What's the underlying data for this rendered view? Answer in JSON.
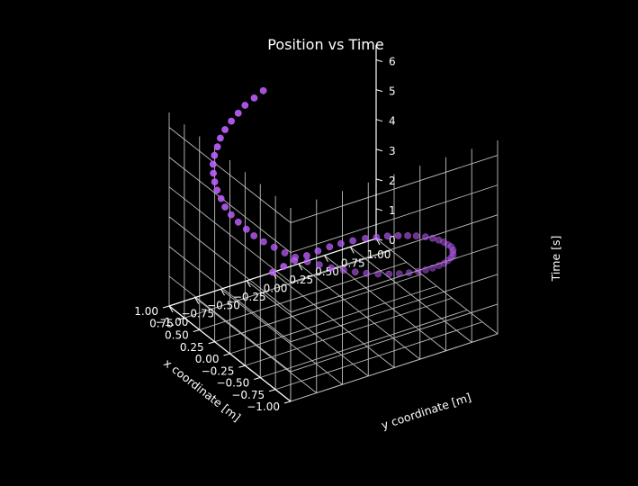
{
  "chart_data": {
    "type": "scatter",
    "projection": "3d",
    "title": "Position vs Time",
    "xlabel": "x coordinate [m]",
    "ylabel": "y coordinate [m]",
    "zlabel": "Time [s]",
    "xlim": [
      -1.0,
      1.0
    ],
    "ylim": [
      -1.0,
      1.0
    ],
    "zlim": [
      0,
      6.5
    ],
    "xticks": [
      "−1.00",
      "−0.75",
      "−0.50",
      "−0.25",
      "0.00",
      "0.25",
      "0.50",
      "0.75",
      "1.00"
    ],
    "yticks": [
      "−1.00",
      "−0.75",
      "−0.50",
      "−0.25",
      "0.00",
      "0.25",
      "0.50",
      "0.75",
      "1.00"
    ],
    "zticks": [
      "0",
      "1",
      "2",
      "3",
      "4",
      "5",
      "6"
    ],
    "grid": true,
    "background": "#000000",
    "text_color": "#ffffff",
    "marker_color": "#bf5fff",
    "series": [
      {
        "x": [
          1.0,
          0.99,
          0.98,
          0.95,
          0.92,
          0.88,
          0.83,
          0.77,
          0.7,
          0.62,
          0.54,
          0.45,
          0.36,
          0.27,
          0.17,
          0.07,
          -0.03,
          -0.13,
          -0.23,
          -0.32,
          -0.42,
          -0.5,
          -0.59,
          -0.66,
          -0.73,
          -0.8,
          -0.85,
          -0.9,
          -0.94,
          -0.97,
          -0.99,
          -1.0,
          -1.0,
          -0.99,
          -0.97,
          -0.94,
          -0.9,
          -0.85,
          -0.79,
          -0.73,
          -0.65,
          -0.58,
          -0.49,
          -0.4,
          -0.31,
          -0.22,
          -0.12,
          -0.02,
          0.08,
          0.18,
          0.28,
          0.37,
          0.46,
          0.55,
          0.63,
          0.7,
          0.77,
          0.83,
          0.88,
          0.92,
          0.96,
          0.98,
          1.0
        ],
        "y": [
          0.0,
          0.1,
          0.2,
          0.3,
          0.39,
          0.48,
          0.56,
          0.64,
          0.72,
          0.78,
          0.84,
          0.89,
          0.93,
          0.96,
          0.99,
          1.0,
          1.0,
          0.99,
          0.97,
          0.95,
          0.91,
          0.86,
          0.81,
          0.75,
          0.68,
          0.6,
          0.52,
          0.43,
          0.34,
          0.25,
          0.15,
          0.05,
          -0.05,
          -0.15,
          -0.25,
          -0.34,
          -0.43,
          -0.52,
          -0.6,
          -0.68,
          -0.75,
          -0.81,
          -0.86,
          -0.91,
          -0.95,
          -0.97,
          -0.99,
          -1.0,
          -1.0,
          -0.98,
          -0.96,
          -0.93,
          -0.89,
          -0.84,
          -0.78,
          -0.71,
          -0.64,
          -0.56,
          -0.47,
          -0.38,
          -0.29,
          -0.19,
          -0.09
        ],
        "z": [
          0.0,
          0.1,
          0.2,
          0.3,
          0.4,
          0.5,
          0.6,
          0.7,
          0.8,
          0.9,
          1.0,
          1.1,
          1.2,
          1.3,
          1.4,
          1.5,
          1.6,
          1.7,
          1.8,
          1.9,
          2.0,
          2.1,
          2.2,
          2.3,
          2.4,
          2.5,
          2.6,
          2.7,
          2.8,
          2.9,
          3.0,
          3.1,
          3.2,
          3.3,
          3.4,
          3.5,
          3.6,
          3.7,
          3.8,
          3.9,
          4.0,
          4.1,
          4.2,
          4.3,
          4.4,
          4.5,
          4.6,
          4.7,
          4.8,
          4.9,
          5.0,
          5.1,
          5.2,
          5.3,
          5.4,
          5.5,
          5.6,
          5.7,
          5.8,
          5.9,
          6.0,
          6.1,
          6.2
        ]
      }
    ]
  }
}
